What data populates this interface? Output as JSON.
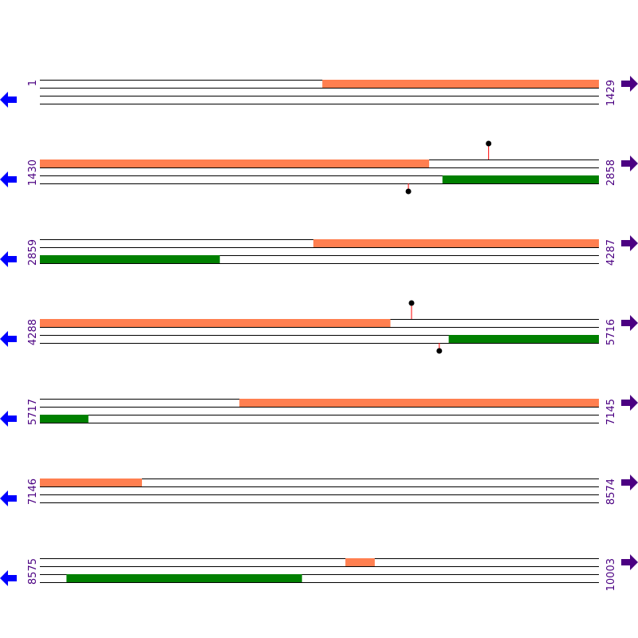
{
  "colors": {
    "line": "#000000",
    "forward_feature": "#ff7f50",
    "reverse_feature": "#008000",
    "left_arrow": "#0000ff",
    "right_arrow": "#4b0082",
    "start_label": "#4b0082",
    "end_label": "#4b0082",
    "marker_stem": "#ff0000",
    "marker_dot": "#000000"
  },
  "icons": {
    "left": "arrow-left-icon",
    "right": "arrow-right-icon"
  },
  "rows": [
    {
      "start": 1,
      "end": 1429,
      "start_label": "1",
      "end_label": "1429",
      "forward": [
        [
          723,
          1429
        ]
      ],
      "reverse": [],
      "markers": []
    },
    {
      "start": 1430,
      "end": 2858,
      "start_label": "1430",
      "end_label": "2858",
      "forward": [
        [
          1430,
          2424
        ]
      ],
      "reverse": [
        [
          2459,
          2858
        ]
      ],
      "markers": [
        {
          "strand": "forward",
          "pos": 2577
        },
        {
          "strand": "reverse",
          "pos": 2372
        }
      ]
    },
    {
      "start": 2859,
      "end": 4287,
      "start_label": "2859",
      "end_label": "4287",
      "forward": [
        [
          3558,
          4287
        ]
      ],
      "reverse": [
        [
          2859,
          3318
        ]
      ],
      "markers": []
    },
    {
      "start": 4288,
      "end": 5716,
      "start_label": "4288",
      "end_label": "5716",
      "forward": [
        [
          4288,
          5183
        ]
      ],
      "reverse": [
        [
          5333,
          5716
        ]
      ],
      "markers": [
        {
          "strand": "forward",
          "pos": 5238
        },
        {
          "strand": "reverse",
          "pos": 5309
        }
      ]
    },
    {
      "start": 5717,
      "end": 7145,
      "start_label": "5717",
      "end_label": "7145",
      "forward": [
        [
          6227,
          7145
        ]
      ],
      "reverse": [
        [
          5717,
          5840
        ]
      ],
      "markers": []
    },
    {
      "start": 7146,
      "end": 8574,
      "start_label": "7146",
      "end_label": "8574",
      "forward": [
        [
          7146,
          7406
        ]
      ],
      "reverse": [],
      "markers": []
    },
    {
      "start": 8575,
      "end": 10003,
      "start_label": "8575",
      "end_label": "10003",
      "forward": [
        [
          9356,
          9430
        ]
      ],
      "reverse": [
        [
          8643,
          9244
        ]
      ],
      "markers": []
    }
  ]
}
